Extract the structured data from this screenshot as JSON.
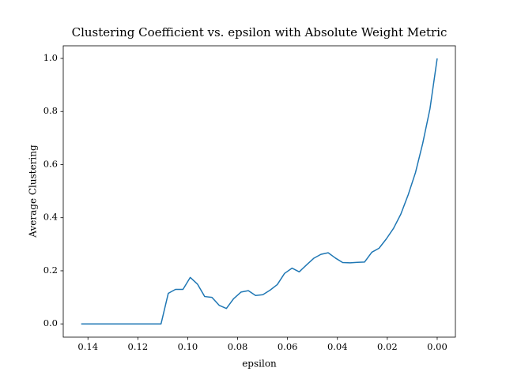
{
  "chart_data": {
    "type": "line",
    "title": "Clustering Coefficient vs. epsilon with Absolute Weight Metric",
    "xlabel": "epsilon",
    "ylabel": "Average Clustering",
    "x": [
      0.1427,
      0.1398,
      0.1369,
      0.134,
      0.131,
      0.1281,
      0.1252,
      0.1223,
      0.1194,
      0.1165,
      0.1136,
      0.1107,
      0.1078,
      0.1049,
      0.1019,
      0.099,
      0.0961,
      0.0932,
      0.0903,
      0.0874,
      0.0845,
      0.0816,
      0.0786,
      0.0757,
      0.0728,
      0.0699,
      0.067,
      0.0641,
      0.0612,
      0.0582,
      0.0553,
      0.0524,
      0.0495,
      0.0466,
      0.0437,
      0.0408,
      0.0379,
      0.0349,
      0.032,
      0.0291,
      0.0262,
      0.0233,
      0.0204,
      0.0175,
      0.0146,
      0.0116,
      0.0087,
      0.0058,
      0.0029,
      0.0
    ],
    "series": [
      {
        "color": "#1f77b4",
        "values": [
          0,
          0,
          0,
          0,
          0,
          0,
          0,
          0,
          0,
          0,
          0,
          0,
          0.115,
          0.13,
          0.13,
          0.175,
          0.15,
          0.103,
          0.1,
          0.07,
          0.058,
          0.095,
          0.12,
          0.125,
          0.107,
          0.11,
          0.127,
          0.148,
          0.19,
          0.21,
          0.196,
          0.222,
          0.247,
          0.262,
          0.268,
          0.248,
          0.231,
          0.23,
          0.232,
          0.233,
          0.27,
          0.285,
          0.32,
          0.36,
          0.413,
          0.487,
          0.57,
          0.68,
          0.81,
          1.0
        ]
      }
    ],
    "xlim": [
      0.1499,
      -0.0073
    ],
    "xticks": [
      0.14,
      0.12,
      {
        "value": 0.1,
        "label": "0.10"
      },
      0.08,
      0.06,
      0.04,
      0.02,
      {
        "value": 0,
        "label": "0.00"
      }
    ],
    "ylim": [
      -0.05,
      1.0476
    ],
    "yticks": [
      {
        "value": 0,
        "label": "0.0"
      },
      0.2,
      0.4,
      0.6,
      0.8,
      {
        "value": 1,
        "label": "1.0"
      }
    ]
  }
}
